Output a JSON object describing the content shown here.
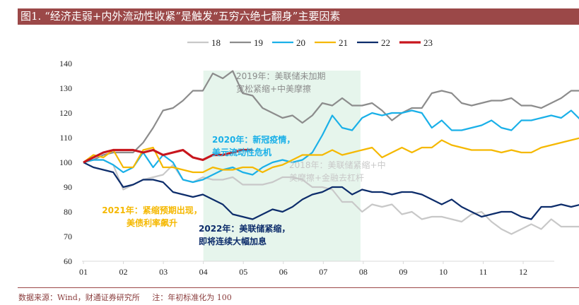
{
  "title": "图1. “经济走弱+内外流动性收紧”是触发“五穷六绝七翻身”主要因素",
  "footer": {
    "source": "数据来源：Wind，财通证券研究所",
    "note": "注：年初标准化为 100"
  },
  "colors": {
    "title_bg": "#9b4848",
    "highlight_region": "#e6f5ec",
    "s18": "#c8c8c8",
    "s19": "#8c8c8c",
    "s20": "#1ab0e8",
    "s21": "#f5b800",
    "s22": "#0d2d6b",
    "s23": "#c8161d"
  },
  "chart_data": {
    "type": "line",
    "title": "“经济走弱+内外流动性收紧”是触发“五穷六绝七翻身”主要因素",
    "xlabel": "",
    "ylabel": "",
    "x_unit": "month (weekly samples, 4.34 per month)",
    "xlim": [
      1,
      12.75
    ],
    "ylim": [
      60,
      140
    ],
    "yticks": [
      60,
      70,
      80,
      90,
      100,
      110,
      120,
      130,
      140
    ],
    "xtick_labels": [
      "01",
      "02",
      "03",
      "04",
      "05",
      "06",
      "07",
      "08",
      "09",
      "10",
      "11",
      "12"
    ],
    "grid": false,
    "legend_position": "top-center",
    "highlight_region": {
      "from_month": 4.0,
      "to_month": 7.93
    },
    "series": [
      {
        "name": "18",
        "color_key": "s18",
        "values": [
          100,
          101,
          101,
          99,
          89,
          91,
          93,
          94,
          95,
          99,
          93,
          92,
          94,
          93,
          93,
          94,
          91,
          91,
          91,
          92,
          94,
          94,
          93,
          90,
          90,
          89,
          84,
          84,
          80,
          83,
          82,
          83,
          79,
          80,
          77,
          78,
          78,
          77,
          76,
          79,
          80,
          76,
          73,
          71,
          73,
          75,
          73,
          77,
          74,
          74,
          74,
          73,
          71,
          70
        ]
      },
      {
        "name": "19",
        "color_key": "s19",
        "values": [
          100,
          101,
          103,
          104,
          104,
          104,
          108,
          114,
          121,
          122,
          125,
          129,
          129,
          136,
          134,
          137,
          128,
          127,
          122,
          120,
          118,
          119,
          116,
          119,
          124,
          123,
          126,
          123,
          123,
          124,
          121,
          117,
          120,
          122,
          122,
          128,
          129,
          128,
          124,
          123,
          124,
          125,
          125,
          126,
          123,
          123,
          122,
          124,
          126,
          129,
          129
        ]
      },
      {
        "name": "20",
        "color_key": "s20",
        "values": [
          100,
          101,
          101,
          99,
          96,
          98,
          104,
          98,
          103,
          100,
          93,
          92,
          93,
          95,
          97,
          98,
          96,
          95,
          98,
          100,
          101,
          100,
          101,
          104,
          111,
          119,
          114,
          113,
          118,
          120,
          119,
          120,
          120,
          121,
          120,
          114,
          117,
          113,
          113,
          114,
          115,
          117,
          114,
          113,
          117,
          117,
          118,
          119,
          118,
          121,
          117,
          119,
          120,
          120
        ]
      },
      {
        "name": "21",
        "color_key": "s21",
        "values": [
          100,
          103,
          102,
          105,
          98,
          98,
          105,
          106,
          98,
          98,
          97,
          96,
          96,
          98,
          97,
          97,
          98,
          98,
          96,
          98,
          99,
          101,
          103,
          103,
          103,
          105,
          103,
          104,
          105,
          106,
          102,
          104,
          106,
          104,
          106,
          106,
          109,
          107,
          106,
          105,
          105,
          105,
          104,
          105,
          104,
          104,
          106,
          107,
          108,
          109,
          110,
          109
        ]
      },
      {
        "name": "22",
        "color_key": "s22",
        "values": [
          100,
          98,
          97,
          96,
          90,
          91,
          93,
          93,
          92,
          88,
          87,
          86,
          87,
          85,
          83,
          79,
          78,
          77,
          79,
          81,
          80,
          82,
          85,
          87,
          88,
          90,
          90,
          87,
          89,
          88,
          88,
          87,
          88,
          88,
          87,
          85,
          83,
          85,
          82,
          80,
          78,
          79,
          80,
          80,
          78,
          77,
          82,
          82,
          83,
          82,
          83,
          85,
          84,
          81,
          82
        ]
      },
      {
        "name": "23",
        "color_key": "s23",
        "values": [
          100,
          102,
          104,
          105,
          105,
          105,
          104,
          105,
          103,
          104,
          105,
          102,
          101,
          103,
          103,
          104,
          105,
          105
        ]
      }
    ],
    "annotations": [
      {
        "key": "a2019",
        "lines": [
          "2019年：美联储未加期",
          "宽松紧缩+中美摩擦"
        ],
        "color_key": "s19"
      },
      {
        "key": "a2020",
        "lines": [
          "2020年：新冠疫情，",
          "美元流动性危机"
        ],
        "color_key": "s20"
      },
      {
        "key": "a2018",
        "lines": [
          "2018年：美联储紧缩+中",
          "美摩擦+金融去杠杆"
        ],
        "color_key": "s18"
      },
      {
        "key": "a2021",
        "lines": [
          "2021年：紧缩预期出现，",
          "美债利率飙升"
        ],
        "color_key": "s21"
      },
      {
        "key": "a2022",
        "lines": [
          "2022年：美联储紧缩，",
          "即将连续大幅加息"
        ],
        "color_key": "s22"
      }
    ]
  }
}
